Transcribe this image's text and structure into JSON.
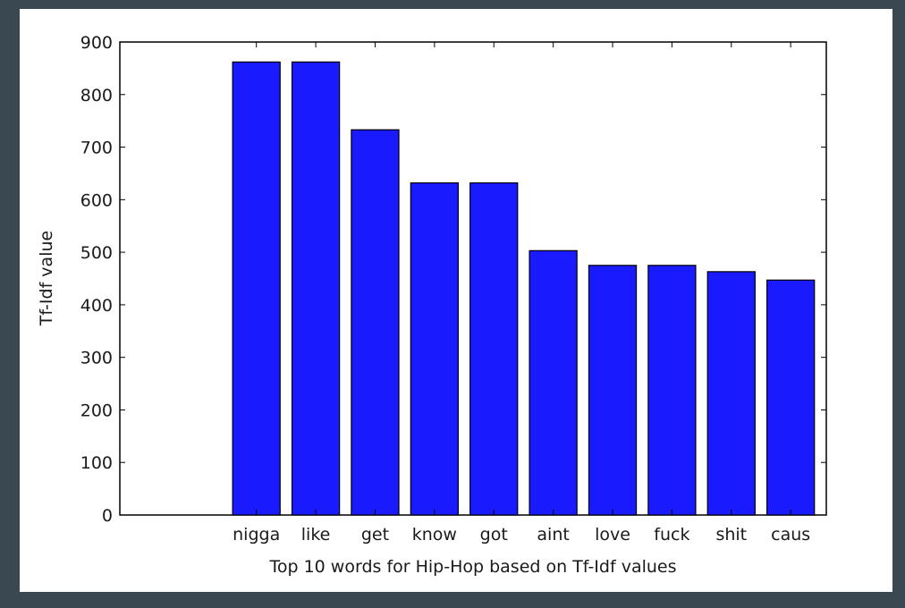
{
  "chart_data": {
    "type": "bar",
    "title": "",
    "xlabel": "Top 10 words for Hip-Hop based on Tf-Idf values",
    "ylabel": "Tf-Idf value",
    "categories": [
      "nigga",
      "like",
      "get",
      "know",
      "got",
      "aint",
      "love",
      "fuck",
      "shit",
      "caus"
    ],
    "values": [
      862,
      862,
      733,
      632,
      632,
      503,
      475,
      475,
      463,
      447
    ],
    "ylim": [
      0,
      900
    ],
    "yticks": [
      0,
      100,
      200,
      300,
      400,
      500,
      600,
      700,
      800,
      900
    ],
    "xlim": [
      -1.9,
      10
    ],
    "bar_color": "#1a1aff",
    "bar_edge_color": "#000000",
    "grid": false,
    "legend": "none"
  },
  "colors": {
    "background": "#3a4852",
    "plot_background": "#ffffff"
  }
}
